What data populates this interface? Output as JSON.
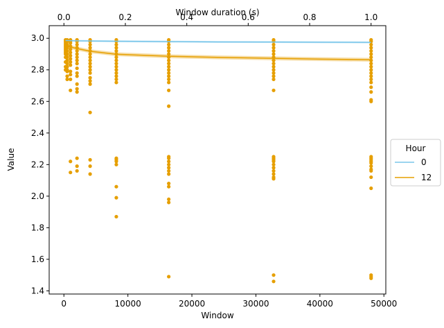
{
  "chart_data": {
    "type": "scatter",
    "xlabel": "Window",
    "ylabel": "Value",
    "top_xlabel": "Window duration (s)",
    "xlim": [
      -2300,
      50300
    ],
    "ylim": [
      1.38,
      3.08
    ],
    "top_xlim": [
      -0.048,
      1.048
    ],
    "xticks": [
      0,
      10000,
      20000,
      30000,
      40000,
      50000
    ],
    "xtick_labels": [
      "0",
      "10000",
      "20000",
      "30000",
      "40000",
      "50000"
    ],
    "yticks": [
      1.4,
      1.6,
      1.8,
      2.0,
      2.2,
      2.4,
      2.6,
      2.8,
      3.0
    ],
    "ytick_labels": [
      "1.4",
      "1.6",
      "1.8",
      "2.0",
      "2.2",
      "2.4",
      "2.6",
      "2.8",
      "3.0"
    ],
    "top_xticks": [
      0.0,
      0.2,
      0.4,
      0.6,
      0.8,
      1.0
    ],
    "top_xtick_labels": [
      "0.0",
      "0.2",
      "0.4",
      "0.6",
      "0.8",
      "1.0"
    ],
    "grid": false,
    "legend": {
      "title": "Hour",
      "placement": "right-outside",
      "entries": [
        {
          "label": "0",
          "color": "#79c6ea"
        },
        {
          "label": "12",
          "color": "#e69f00"
        }
      ]
    },
    "scatter_color": "#e69f00",
    "scatter": [
      {
        "window": 256,
        "values": [
          2.99,
          2.98,
          2.97,
          2.96,
          2.95,
          2.94,
          2.93,
          2.92,
          2.91,
          2.9,
          2.88,
          2.85,
          2.82,
          2.8
        ]
      },
      {
        "window": 512,
        "values": [
          2.99,
          2.98,
          2.96,
          2.94,
          2.92,
          2.9,
          2.88,
          2.86,
          2.84,
          2.82,
          2.8,
          2.79,
          2.76,
          2.74
        ]
      },
      {
        "window": 1024,
        "values": [
          2.99,
          2.98,
          2.97,
          2.95,
          2.93,
          2.91,
          2.89,
          2.87,
          2.85,
          2.83,
          2.79,
          2.77,
          2.74,
          2.67,
          2.22,
          2.15
        ]
      },
      {
        "window": 2048,
        "values": [
          2.99,
          2.98,
          2.96,
          2.94,
          2.92,
          2.9,
          2.88,
          2.86,
          2.84,
          2.81,
          2.78,
          2.76,
          2.71,
          2.68,
          2.66,
          2.24,
          2.19,
          2.16
        ]
      },
      {
        "window": 4096,
        "values": [
          2.99,
          2.98,
          2.96,
          2.94,
          2.92,
          2.9,
          2.88,
          2.86,
          2.84,
          2.82,
          2.8,
          2.78,
          2.75,
          2.73,
          2.71,
          2.53,
          2.23,
          2.19,
          2.14
        ]
      },
      {
        "window": 8192,
        "values": [
          2.99,
          2.98,
          2.96,
          2.94,
          2.92,
          2.9,
          2.88,
          2.86,
          2.84,
          2.82,
          2.8,
          2.78,
          2.76,
          2.74,
          2.72,
          2.24,
          2.23,
          2.22,
          2.2,
          2.06,
          1.99,
          1.87
        ]
      },
      {
        "window": 16384,
        "values": [
          2.99,
          2.98,
          2.96,
          2.94,
          2.92,
          2.9,
          2.88,
          2.86,
          2.84,
          2.82,
          2.8,
          2.78,
          2.76,
          2.74,
          2.72,
          2.67,
          2.57,
          2.25,
          2.24,
          2.22,
          2.2,
          2.18,
          2.16,
          2.14,
          2.08,
          2.06,
          1.98,
          1.96,
          1.49
        ]
      },
      {
        "window": 32768,
        "values": [
          2.99,
          2.98,
          2.96,
          2.94,
          2.92,
          2.9,
          2.88,
          2.86,
          2.84,
          2.82,
          2.8,
          2.78,
          2.76,
          2.74,
          2.67,
          2.25,
          2.24,
          2.23,
          2.22,
          2.2,
          2.18,
          2.16,
          2.14,
          2.12,
          2.11,
          1.5,
          1.46
        ]
      },
      {
        "window": 48000,
        "values": [
          2.99,
          2.98,
          2.96,
          2.94,
          2.92,
          2.9,
          2.88,
          2.86,
          2.84,
          2.82,
          2.8,
          2.78,
          2.76,
          2.74,
          2.72,
          2.69,
          2.66,
          2.61,
          2.6,
          2.25,
          2.24,
          2.23,
          2.22,
          2.21,
          2.19,
          2.17,
          2.16,
          2.12,
          2.05,
          1.5,
          1.49,
          1.48
        ]
      }
    ],
    "series": [
      {
        "name": "0",
        "color": "#79c6ea",
        "x": [
          256,
          1000,
          2048,
          4096,
          8192,
          16384,
          24000,
          32768,
          40000,
          48000
        ],
        "values": [
          2.986,
          2.985,
          2.984,
          2.983,
          2.981,
          2.979,
          2.977,
          2.976,
          2.975,
          2.974
        ],
        "band": 0.006
      },
      {
        "name": "12",
        "color": "#e69f00",
        "x": [
          256,
          1000,
          2048,
          4096,
          8192,
          16384,
          24000,
          32768,
          40000,
          48000
        ],
        "values": [
          2.955,
          2.945,
          2.935,
          2.918,
          2.899,
          2.886,
          2.879,
          2.873,
          2.868,
          2.864
        ],
        "band": 0.012
      }
    ]
  }
}
